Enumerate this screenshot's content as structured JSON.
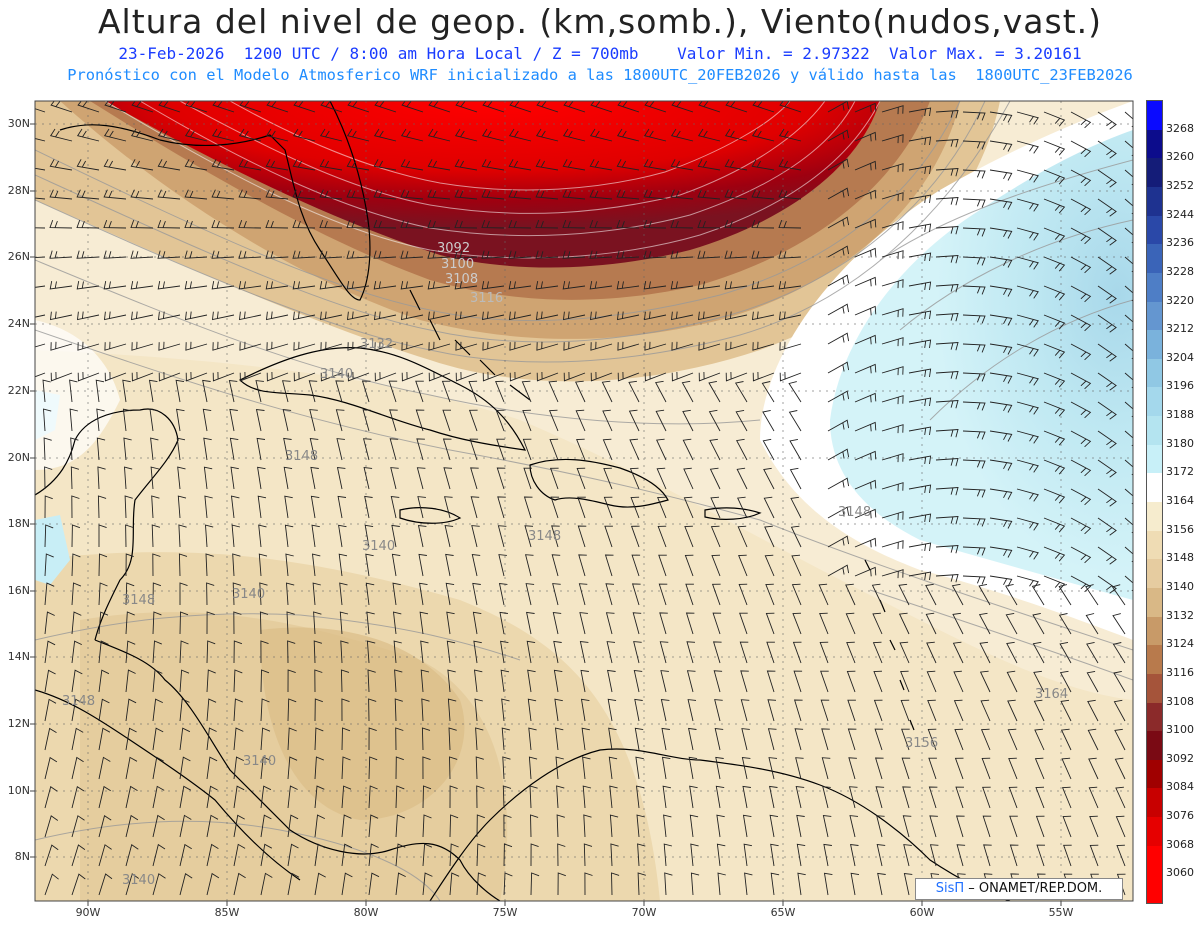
{
  "header": {
    "title": "Altura del nivel de geop. (km,somb.), Viento(nudos,vast.)",
    "line1": "23-Feb-2026  1200 UTC / 8:00 am Hora Local / Z = 700mb    Valor Min. = 2.97322  Valor Max. = 3.20161",
    "line2": "Pronóstico con el Modelo Atmosferico WRF inicializado a las 1800UTC_20FEB2026 y válido hasta las  1800UTC_23FEB2026"
  },
  "axes": {
    "lat_labels": [
      "30N",
      "28N",
      "26N",
      "24N",
      "22N",
      "20N",
      "18N",
      "16N",
      "14N",
      "12N",
      "10N",
      "8N"
    ],
    "lon_labels": [
      "90W",
      "85W",
      "80W",
      "75W",
      "70W",
      "65W",
      "60W",
      "55W"
    ]
  },
  "colorbar": {
    "levels": [
      "3060",
      "3068",
      "3076",
      "3084",
      "3092",
      "3100",
      "3108",
      "3116",
      "3124",
      "3132",
      "3140",
      "3148",
      "3156",
      "3164",
      "3172",
      "3180",
      "3188",
      "3196",
      "3204",
      "3212",
      "3220",
      "3228",
      "3236",
      "3244",
      "3252",
      "3260",
      "3268"
    ],
    "colors": [
      "#ff0000",
      "#e60000",
      "#c80000",
      "#a00000",
      "#7a0a14",
      "#8b2a2a",
      "#a5543a",
      "#b87a4c",
      "#c89a68",
      "#d9b886",
      "#e6cca0",
      "#efdcb4",
      "#f6ecce",
      "#ffffff",
      "#c8f0f8",
      "#b4e4f0",
      "#a4d8ec",
      "#90c8e4",
      "#7ab2dc",
      "#6496d0",
      "#4e7ec6",
      "#3a64b8",
      "#2a48a8",
      "#1e3290",
      "#141c78",
      "#0c0c8c",
      "#0a0aff"
    ]
  },
  "contour_labels": [
    "3092",
    "3100",
    "3108",
    "3116",
    "3132",
    "3140",
    "3148",
    "3140",
    "3148",
    "3140",
    "3148",
    "3156",
    "3164",
    "3148",
    "3140",
    "3140",
    "3148"
  ],
  "credit": {
    "logo": "SisΠ",
    "text": "– ONAMET/REP.DOM."
  }
}
